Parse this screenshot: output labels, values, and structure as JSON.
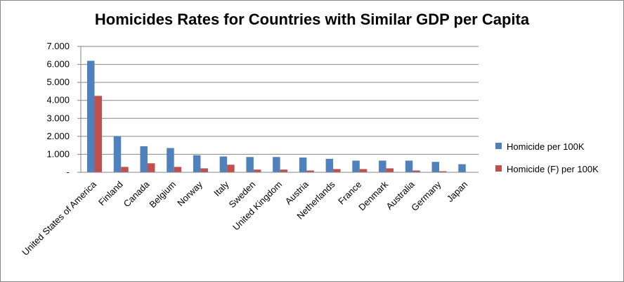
{
  "chart_data": {
    "type": "bar",
    "title": "Homicides Rates for Countries with Similar GDP per Capita",
    "xlabel": "",
    "ylabel": "",
    "ylim": [
      0,
      7
    ],
    "ytick_step": 1,
    "ytick_labels": [
      "-",
      "1.000",
      "2.000",
      "3.000",
      "4.000",
      "5.000",
      "6.000",
      "7.000"
    ],
    "grid": true,
    "legend_position": "right",
    "categories": [
      "United States of America",
      "Finland",
      "Canada",
      "Belgium",
      "Norway",
      "Italy",
      "Sweden",
      "United Kingdom",
      "Austria",
      "Netherlands",
      "France",
      "Denmark",
      "Australia",
      "Germany",
      "Japan"
    ],
    "series": [
      {
        "name": "Homicide per 100K",
        "color": "#4F81BD",
        "values": [
          6.2,
          2.0,
          1.45,
          1.35,
          0.95,
          0.88,
          0.85,
          0.85,
          0.82,
          0.75,
          0.65,
          0.65,
          0.65,
          0.58,
          0.45
        ]
      },
      {
        "name": "Homicide (F) per 100K",
        "color": "#C0504D",
        "values": [
          4.25,
          0.3,
          0.5,
          0.3,
          0.22,
          0.42,
          0.15,
          0.15,
          0.1,
          0.18,
          0.18,
          0.22,
          0.1,
          0.06,
          0.0
        ]
      }
    ]
  }
}
